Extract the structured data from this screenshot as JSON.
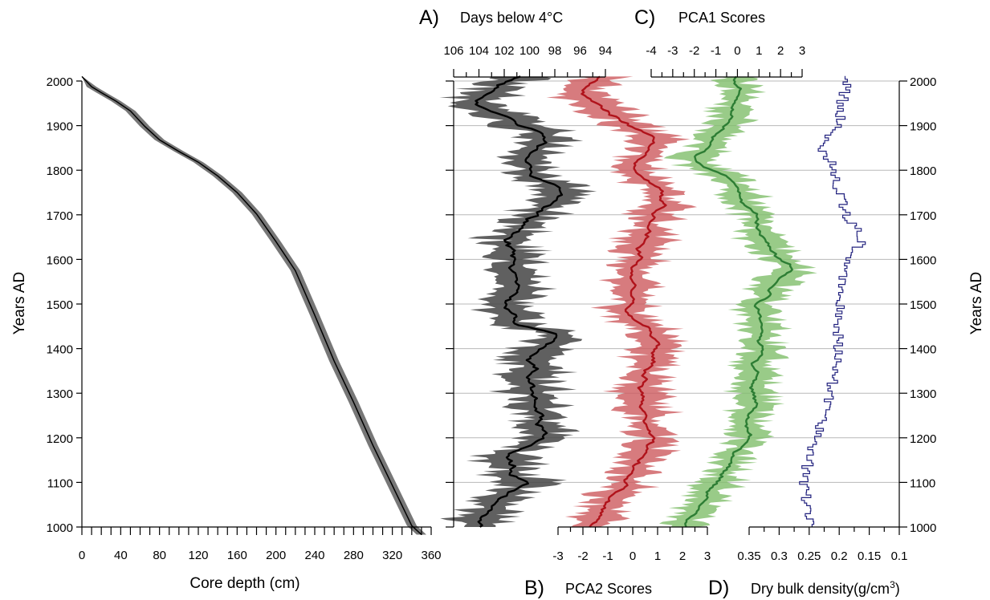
{
  "chart_data": [
    {
      "type": "area",
      "panel": "age-depth",
      "xlabel": "Core depth (cm)",
      "ylabel": "Years AD",
      "xlim": [
        0,
        360
      ],
      "ylim": [
        1000,
        2000
      ],
      "xticks": [
        "0",
        "40",
        "80",
        "120",
        "160",
        "200",
        "240",
        "280",
        "320",
        "360"
      ],
      "yticks": [
        "1000",
        "1100",
        "1200",
        "1300",
        "1400",
        "1500",
        "1600",
        "1700",
        "1800",
        "1900",
        "2000"
      ],
      "series": [
        {
          "x": [
            0,
            10,
            20,
            35,
            50,
            65,
            80,
            100,
            120,
            140,
            160,
            180,
            200,
            220,
            240,
            260,
            280,
            300,
            320,
            340,
            350
          ],
          "y": [
            2010,
            1987,
            1974,
            1955,
            1933,
            1898,
            1868,
            1842,
            1818,
            1787,
            1750,
            1702,
            1640,
            1575,
            1475,
            1372,
            1280,
            1183,
            1093,
            1003,
            983
          ],
          "band": 5,
          "color": "#000000",
          "band_color": "#777777"
        }
      ]
    },
    {
      "type": "line",
      "panel": "proxy-stack",
      "ylim": [
        1000,
        2000
      ],
      "yticks": [
        "1000",
        "1100",
        "1200",
        "1300",
        "1400",
        "1500",
        "1600",
        "1700",
        "1800",
        "1900",
        "2000"
      ],
      "ylabel_right": "Years AD",
      "gridlines": true,
      "panels": [
        {
          "label": "A)",
          "axis_title": "Days below 4°C",
          "axis_position": "top",
          "xlim": [
            106,
            94
          ],
          "ticks": [
            "106",
            "104",
            "102",
            "100",
            "98",
            "96",
            "94"
          ],
          "color": "#000000",
          "band_color": "#444444",
          "approx_mean": 100,
          "spread": 2.6
        },
        {
          "label": "B)",
          "axis_title": "PCA2 Scores",
          "axis_position": "bottom",
          "xlim": [
            -3,
            3
          ],
          "ticks": [
            "-3",
            "-2",
            "-1",
            "0",
            "1",
            "2",
            "3"
          ],
          "color": "#b0131b",
          "band_color": "#cd5a5e",
          "approx_mean": 0,
          "spread": 1.2
        },
        {
          "label": "C)",
          "axis_title": "PCA1 Scores",
          "axis_position": "top",
          "xlim": [
            -4,
            3
          ],
          "ticks": [
            "-4",
            "-3",
            "-2",
            "-1",
            "0",
            "1",
            "2",
            "3"
          ],
          "color": "#2d7d34",
          "band_color": "#7fbe6a",
          "approx_mean": 0.7,
          "spread": 1.3
        },
        {
          "label": "D)",
          "axis_title": "Dry bulk density(g/cm",
          "axis_title_sup": "3",
          "axis_title_end": ")",
          "axis_position": "bottom",
          "xlim": [
            0.35,
            0.1
          ],
          "ticks": [
            "0.35",
            "0.3",
            "0.25",
            "0.2",
            "0.15",
            "0.1"
          ],
          "color": "#23237f",
          "approx_mean": 0.21,
          "spread": 0.035
        }
      ]
    }
  ]
}
